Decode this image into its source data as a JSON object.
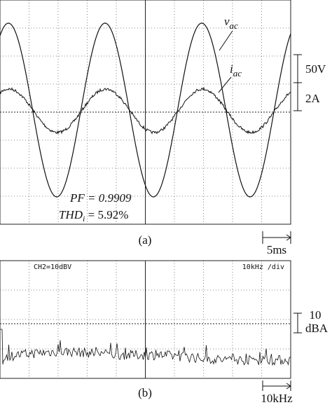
{
  "figure_a": {
    "voltage_label": {
      "symbol": "v",
      "subscript": "ac"
    },
    "current_label": {
      "symbol": "i",
      "subscript": "ac"
    },
    "voltage_scale": "50V",
    "current_scale": "2A",
    "power_factor": "PF = 0.9909",
    "thd": {
      "symbol": "THD",
      "subscript": "i",
      "rest": " = 5.92%"
    },
    "caption": "(a)",
    "time_scale": "5ms"
  },
  "figure_b": {
    "channel": "CH2=10dBV",
    "freq_div": "10kHz /div",
    "amp_scale_value": "10",
    "amp_scale_unit": "dBA",
    "caption": "(b)",
    "freq_scale": "10kHz"
  }
}
